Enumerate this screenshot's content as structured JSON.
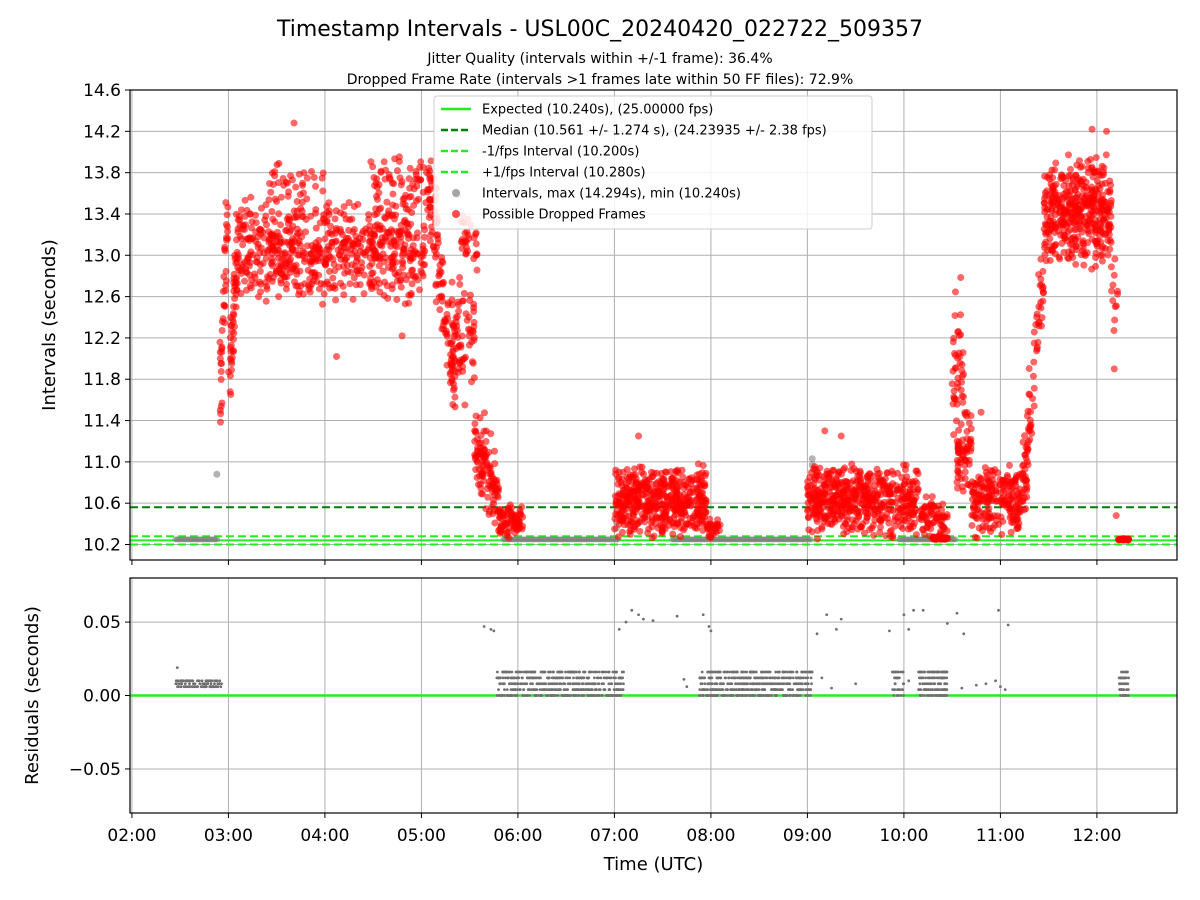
{
  "chart_data": {
    "type": "scatter",
    "title": "Timestamp Intervals - USL00C_20240420_022722_509357",
    "subtitle_1": "Jitter Quality (intervals within +/-1 frame): 36.4%",
    "subtitle_2": "Dropped Frame Rate (intervals >1 frames late within 50 FF files): 72.9%",
    "xlabel": "Time (UTC)",
    "x_ticks": [
      "02:00",
      "03:00",
      "04:00",
      "05:00",
      "06:00",
      "07:00",
      "08:00",
      "09:00",
      "10:00",
      "11:00",
      "12:00"
    ],
    "xlim_hours": [
      1.98,
      12.83
    ],
    "panels": [
      {
        "name": "intervals",
        "ylabel": "Intervals (seconds)",
        "ylim": [
          10.05,
          14.6
        ],
        "y_ticks": [
          "10.2",
          "10.6",
          "11.0",
          "11.4",
          "11.8",
          "12.2",
          "12.6",
          "13.0",
          "13.4",
          "13.8",
          "14.2",
          "14.6"
        ],
        "grid": true,
        "legend_position": "top-center",
        "legend": [
          {
            "label": "Expected (10.240s), (25.00000 fps)",
            "style": "solid-line",
            "color": "#22ee22"
          },
          {
            "label": "Median (10.561 +/- 1.274 s), (24.23935 +/- 2.38 fps)",
            "style": "dashed-line",
            "color": "#008000"
          },
          {
            "label": "-1/fps Interval (10.200s)",
            "style": "dashed-line",
            "color": "#22ee22"
          },
          {
            "label": "+1/fps Interval (10.280s)",
            "style": "dashed-line",
            "color": "#22ee22"
          },
          {
            "label": "Intervals, max (14.294s), min (10.240s)",
            "style": "marker",
            "color": "#808080"
          },
          {
            "label": "Possible Dropped Frames",
            "style": "marker",
            "color": "#ff0000"
          }
        ],
        "reference_lines": [
          {
            "name": "expected",
            "y": 10.24,
            "color": "#22ee22",
            "dash": false
          },
          {
            "name": "median",
            "y": 10.561,
            "color": "#008000",
            "dash": true
          },
          {
            "name": "minus_one_fps",
            "y": 10.2,
            "color": "#22ee22",
            "dash": true
          },
          {
            "name": "plus_one_fps",
            "y": 10.28,
            "color": "#22ee22",
            "dash": true
          }
        ],
        "intervals_series": {
          "color": "#808080",
          "segments": [
            {
              "start": 2.45,
              "end": 2.9,
              "y": 10.25
            },
            {
              "start": 5.85,
              "end": 7.05,
              "y": 10.25
            },
            {
              "start": 7.6,
              "end": 9.05,
              "y": 10.25
            },
            {
              "start": 9.95,
              "end": 10.55,
              "y": 10.25
            }
          ],
          "points": [
            [
              2.88,
              10.88
            ],
            [
              7.02,
              10.62
            ],
            [
              7.02,
              10.42
            ],
            [
              7.02,
              10.36
            ],
            [
              9.05,
              11.03
            ],
            [
              9.05,
              10.97
            ],
            [
              5.38,
              13.58
            ]
          ]
        },
        "dropped_series": {
          "color": "#ff0000",
          "clusters": [
            {
              "x0": 2.9,
              "x1": 3.0,
              "y0": 11.3,
              "y1": 13.7,
              "n": 40,
              "trend": "up"
            },
            {
              "x0": 3.0,
              "x1": 3.12,
              "y0": 11.6,
              "y1": 13.5,
              "n": 60,
              "trend": "up"
            },
            {
              "x0": 3.12,
              "x1": 5.05,
              "y0": 12.5,
              "y1": 13.6,
              "n": 620,
              "trend": "flat"
            },
            {
              "x0": 3.4,
              "x1": 4.0,
              "y0": 13.45,
              "y1": 13.95,
              "n": 35,
              "trend": "flat"
            },
            {
              "x0": 4.45,
              "x1": 5.1,
              "y0": 13.4,
              "y1": 14.0,
              "n": 60,
              "trend": "flat"
            },
            {
              "x0": 5.05,
              "x1": 5.35,
              "y0": 11.5,
              "y1": 14.0,
              "n": 110,
              "trend": "down"
            },
            {
              "x0": 5.3,
              "x1": 5.55,
              "y0": 11.6,
              "y1": 12.8,
              "n": 70,
              "trend": "flat"
            },
            {
              "x0": 5.4,
              "x1": 5.58,
              "y0": 12.8,
              "y1": 13.5,
              "n": 30,
              "trend": "flat"
            },
            {
              "x0": 5.55,
              "x1": 5.8,
              "y0": 10.35,
              "y1": 11.5,
              "n": 110,
              "trend": "down"
            },
            {
              "x0": 5.8,
              "x1": 6.05,
              "y0": 10.25,
              "y1": 10.6,
              "n": 80,
              "trend": "flat"
            },
            {
              "x0": 7.0,
              "x1": 7.95,
              "y0": 10.25,
              "y1": 11.0,
              "n": 480,
              "trend": "flat"
            },
            {
              "x0": 7.95,
              "x1": 8.1,
              "y0": 10.25,
              "y1": 10.5,
              "n": 30,
              "trend": "flat"
            },
            {
              "x0": 9.0,
              "x1": 10.15,
              "y0": 10.25,
              "y1": 11.0,
              "n": 520,
              "trend": "flat"
            },
            {
              "x0": 10.15,
              "x1": 10.45,
              "y0": 10.25,
              "y1": 10.7,
              "n": 70,
              "trend": "flat"
            },
            {
              "x0": 10.3,
              "x1": 10.45,
              "y0": 10.24,
              "y1": 10.28,
              "n": 40,
              "trend": "flat"
            },
            {
              "x0": 10.5,
              "x1": 10.62,
              "y0": 10.8,
              "y1": 12.9,
              "n": 45,
              "trend": "flat"
            },
            {
              "x0": 10.55,
              "x1": 10.7,
              "y0": 10.6,
              "y1": 11.6,
              "n": 60,
              "trend": "flat"
            },
            {
              "x0": 10.7,
              "x1": 11.2,
              "y0": 10.25,
              "y1": 11.0,
              "n": 200,
              "trend": "flat"
            },
            {
              "x0": 11.2,
              "x1": 11.45,
              "y0": 10.3,
              "y1": 13.0,
              "n": 90,
              "trend": "up"
            },
            {
              "x0": 11.45,
              "x1": 12.15,
              "y0": 12.85,
              "y1": 14.0,
              "n": 420,
              "trend": "flat"
            },
            {
              "x0": 12.15,
              "x1": 12.22,
              "y0": 11.9,
              "y1": 13.2,
              "n": 12,
              "trend": "flat"
            },
            {
              "x0": 12.22,
              "x1": 12.33,
              "y0": 10.24,
              "y1": 10.26,
              "n": 25,
              "trend": "flat"
            }
          ],
          "points": [
            [
              3.68,
              14.28
            ],
            [
              4.12,
              12.02
            ],
            [
              4.8,
              12.22
            ],
            [
              5.45,
              11.55
            ],
            [
              11.95,
              14.22
            ],
            [
              12.1,
              14.2
            ],
            [
              7.25,
              11.25
            ],
            [
              9.18,
              11.3
            ],
            [
              9.35,
              11.25
            ],
            [
              10.58,
              12.02
            ],
            [
              10.8,
              11.48
            ],
            [
              12.18,
              11.9
            ],
            [
              12.2,
              10.48
            ]
          ]
        }
      },
      {
        "name": "residuals",
        "ylabel": "Residuals (seconds)",
        "ylim": [
          -0.08,
          0.08
        ],
        "y_ticks": [
          "0.05",
          "0.00",
          "−0.05"
        ],
        "y_tick_values": [
          0.05,
          0.0,
          -0.05
        ],
        "grid": true,
        "zero_line_color": "#22ee22",
        "residual_series": {
          "color": "#707070",
          "clusters": [
            {
              "x0": 2.45,
              "x1": 2.93,
              "y0": 0.006,
              "y1": 0.01,
              "n": 90
            },
            {
              "x0": 5.78,
              "x1": 7.1,
              "y0": 0.0,
              "y1": 0.017,
              "n": 520
            },
            {
              "x0": 7.88,
              "x1": 9.05,
              "y0": 0.0,
              "y1": 0.017,
              "n": 520
            },
            {
              "x0": 9.88,
              "x1": 10.0,
              "y0": 0.0,
              "y1": 0.016,
              "n": 40
            },
            {
              "x0": 10.15,
              "x1": 10.45,
              "y0": 0.0,
              "y1": 0.017,
              "n": 150
            },
            {
              "x0": 12.23,
              "x1": 12.33,
              "y0": 0.0,
              "y1": 0.017,
              "n": 60
            }
          ],
          "points": [
            [
              2.47,
              0.019
            ],
            [
              5.65,
              0.047
            ],
            [
              5.72,
              0.045
            ],
            [
              5.75,
              0.044
            ],
            [
              7.05,
              0.045
            ],
            [
              7.12,
              0.05
            ],
            [
              7.18,
              0.058
            ],
            [
              7.25,
              0.055
            ],
            [
              7.3,
              0.052
            ],
            [
              7.4,
              0.051
            ],
            [
              7.65,
              0.054
            ],
            [
              7.92,
              0.055
            ],
            [
              7.98,
              0.047
            ],
            [
              7.72,
              0.011
            ],
            [
              7.75,
              0.006
            ],
            [
              8.0,
              0.044
            ],
            [
              9.1,
              0.042
            ],
            [
              9.2,
              0.055
            ],
            [
              9.3,
              0.045
            ],
            [
              9.35,
              0.052
            ],
            [
              9.15,
              0.012
            ],
            [
              9.25,
              0.005
            ],
            [
              9.5,
              0.008
            ],
            [
              9.85,
              0.044
            ],
            [
              10.0,
              0.055
            ],
            [
              10.05,
              0.045
            ],
            [
              10.1,
              0.058
            ],
            [
              10.05,
              0.01
            ],
            [
              10.2,
              0.058
            ],
            [
              10.45,
              0.049
            ],
            [
              10.55,
              0.056
            ],
            [
              10.6,
              0.005
            ],
            [
              10.62,
              0.042
            ],
            [
              10.75,
              0.007
            ],
            [
              10.85,
              0.008
            ],
            [
              10.98,
              0.058
            ],
            [
              11.08,
              0.048
            ],
            [
              10.95,
              0.01
            ],
            [
              11.0,
              0.006
            ],
            [
              11.05,
              0.004
            ]
          ]
        }
      }
    ]
  }
}
